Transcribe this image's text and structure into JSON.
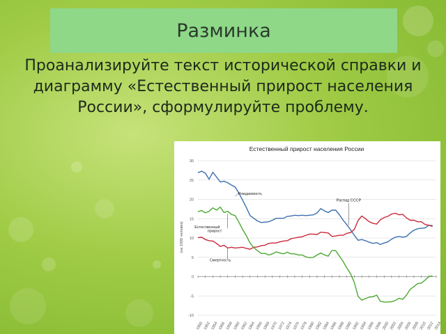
{
  "slide": {
    "title": "Разминка",
    "text": "Проанализируйте текст исторической справки и диаграмму «Естественный прирост населения России», сформулируйте проблему."
  },
  "colors": {
    "birth": "#3a6fb0",
    "death": "#c8283a",
    "growth": "#4aa832"
  },
  "chart_data": {
    "type": "line",
    "title": "Естественный прирост населения России",
    "ylabel": "(на 1000 человек)",
    "ylim": [
      -10,
      30
    ],
    "yticks": [
      -10,
      -5,
      0,
      5,
      10,
      15,
      20,
      25,
      30
    ],
    "xlim": [
      1950,
      2014
    ],
    "xtick_labels": [
      "1950",
      "1952",
      "1954",
      "1956",
      "1958",
      "1960",
      "1962",
      "1964",
      "1966",
      "1968",
      "1970",
      "1972",
      "1974",
      "1976",
      "1978",
      "1980",
      "1982",
      "1984",
      "1986",
      "1988",
      "1990",
      "1992",
      "1994",
      "1996",
      "1998",
      "2000",
      "2002",
      "2004",
      "2006",
      "2008",
      "2010",
      "2012",
      "2014"
    ],
    "annotations": [
      {
        "text": "Рождаемость",
        "x": 1964,
        "y": 21.2
      },
      {
        "text": "Распад СССР",
        "x": 1990.5,
        "y": 19.5
      },
      {
        "text": "Естественный",
        "x": 1952.5,
        "y": 12.5
      },
      {
        "text": "прирост",
        "x": 1954.5,
        "y": 11.5
      },
      {
        "text": "Смертность",
        "x": 1956,
        "y": 4.0
      }
    ],
    "series": [
      {
        "name": "Рождаемость",
        "color": "#3a6fb0",
        "x": [
          1950,
          1951,
          1952,
          1953,
          1954,
          1955,
          1956,
          1957,
          1958,
          1959,
          1960,
          1961,
          1962,
          1963,
          1964,
          1965,
          1966,
          1967,
          1968,
          1969,
          1970,
          1971,
          1972,
          1973,
          1974,
          1975,
          1976,
          1977,
          1978,
          1979,
          1980,
          1981,
          1982,
          1983,
          1984,
          1985,
          1986,
          1987,
          1988,
          1989,
          1990,
          1991,
          1992,
          1993,
          1994,
          1995,
          1996,
          1997,
          1998,
          1999,
          2000,
          2001,
          2002,
          2003,
          2004,
          2005,
          2006,
          2007,
          2008,
          2009,
          2010,
          2011,
          2012,
          2013
        ],
        "y": [
          26.9,
          27.3,
          26.8,
          25.2,
          27.0,
          25.8,
          24.5,
          24.7,
          24.3,
          23.7,
          23.2,
          21.6,
          19.8,
          17.9,
          15.8,
          15.1,
          14.4,
          14.0,
          14.1,
          14.2,
          14.6,
          15.1,
          15.1,
          15.1,
          15.6,
          15.7,
          15.9,
          15.8,
          15.9,
          15.8,
          15.9,
          16.0,
          16.5,
          17.6,
          17.0,
          16.6,
          17.2,
          17.2,
          16.0,
          14.6,
          13.4,
          12.1,
          10.7,
          9.4,
          9.6,
          9.3,
          8.9,
          8.6,
          8.8,
          8.3,
          8.7,
          9.0,
          9.7,
          10.2,
          10.4,
          10.2,
          10.4,
          11.3,
          12.0,
          12.4,
          12.5,
          12.6,
          13.3,
          13.2
        ]
      },
      {
        "name": "Смертность",
        "color": "#c8283a",
        "x": [
          1950,
          1951,
          1952,
          1953,
          1954,
          1955,
          1956,
          1957,
          1958,
          1959,
          1960,
          1961,
          1962,
          1963,
          1964,
          1965,
          1966,
          1967,
          1968,
          1969,
          1970,
          1971,
          1972,
          1973,
          1974,
          1975,
          1976,
          1977,
          1978,
          1979,
          1980,
          1981,
          1982,
          1983,
          1984,
          1985,
          1986,
          1987,
          1988,
          1989,
          1990,
          1991,
          1992,
          1993,
          1994,
          1995,
          1996,
          1997,
          1998,
          1999,
          2000,
          2001,
          2002,
          2003,
          2004,
          2005,
          2006,
          2007,
          2008,
          2009,
          2010,
          2011,
          2012,
          2013
        ],
        "y": [
          10.1,
          10.2,
          9.6,
          9.3,
          9.2,
          8.6,
          7.8,
          8.1,
          7.4,
          7.6,
          7.4,
          7.5,
          7.6,
          7.3,
          7.1,
          7.6,
          7.7,
          8.0,
          8.1,
          8.6,
          8.7,
          8.7,
          9.0,
          9.2,
          9.3,
          9.8,
          10.0,
          10.2,
          10.3,
          10.7,
          11.0,
          11.0,
          10.9,
          11.5,
          11.4,
          11.3,
          10.4,
          10.5,
          10.7,
          10.7,
          11.2,
          11.4,
          12.2,
          14.5,
          15.7,
          15.0,
          14.2,
          13.8,
          13.6,
          14.7,
          15.3,
          15.6,
          16.2,
          16.4,
          16.0,
          16.1,
          15.2,
          14.6,
          14.6,
          14.2,
          14.2,
          13.5,
          13.3,
          13.0
        ]
      },
      {
        "name": "Естественный прирост",
        "color": "#4aa832",
        "x": [
          1950,
          1951,
          1952,
          1953,
          1954,
          1955,
          1956,
          1957,
          1958,
          1959,
          1960,
          1961,
          1962,
          1963,
          1964,
          1965,
          1966,
          1967,
          1968,
          1969,
          1970,
          1971,
          1972,
          1973,
          1974,
          1975,
          1976,
          1977,
          1978,
          1979,
          1980,
          1981,
          1982,
          1983,
          1984,
          1985,
          1986,
          1987,
          1988,
          1989,
          1990,
          1991,
          1992,
          1993,
          1994,
          1995,
          1996,
          1997,
          1998,
          1999,
          2000,
          2001,
          2002,
          2003,
          2004,
          2005,
          2006,
          2007,
          2008,
          2009,
          2010,
          2011,
          2012,
          2013
        ],
        "y": [
          16.8,
          17.1,
          16.5,
          16.9,
          17.8,
          17.2,
          18.0,
          16.6,
          16.9,
          16.1,
          15.8,
          14.1,
          12.2,
          10.6,
          8.7,
          7.5,
          6.7,
          6.0,
          6.0,
          5.6,
          5.9,
          6.4,
          6.1,
          5.9,
          6.3,
          5.9,
          5.9,
          5.6,
          5.6,
          5.1,
          4.9,
          5.0,
          5.6,
          6.1,
          5.6,
          5.3,
          6.8,
          6.7,
          5.3,
          3.9,
          2.2,
          0.7,
          -1.5,
          -5.1,
          -6.1,
          -5.7,
          -5.3,
          -5.2,
          -4.8,
          -6.4,
          -6.6,
          -6.6,
          -6.5,
          -6.2,
          -5.6,
          -5.9,
          -4.8,
          -3.3,
          -2.6,
          -1.8,
          -1.7,
          -0.9,
          0.0,
          0.2
        ]
      }
    ]
  }
}
